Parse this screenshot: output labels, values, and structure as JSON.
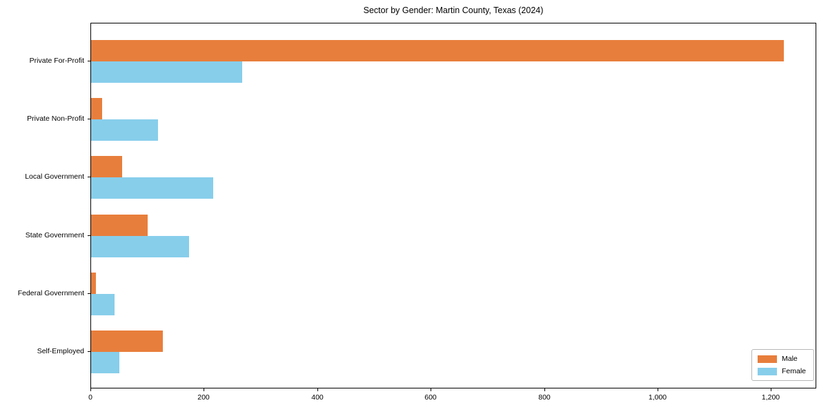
{
  "chart_data": {
    "type": "bar",
    "orientation": "horizontal",
    "title": "Sector by Gender: Martin County, Texas (2024)",
    "xlabel": "",
    "ylabel": "",
    "grid": false,
    "categories": [
      "Private For-Profit",
      "Private Non-Profit",
      "Local Government",
      "State Government",
      "Federal Government",
      "Self-Employed"
    ],
    "series": [
      {
        "name": "Male",
        "color": "#E87E3C",
        "values": [
          1221,
          20,
          55,
          100,
          9,
          126
        ]
      },
      {
        "name": "Female",
        "color": "#87CEEB",
        "values": [
          267,
          118,
          215,
          173,
          41,
          50
        ]
      }
    ],
    "xlim": [
      0,
      1280
    ],
    "xticks": [
      0,
      200,
      400,
      600,
      800,
      1000,
      1200
    ],
    "xtick_labels": [
      "0",
      "200",
      "400",
      "600",
      "800",
      "1,000",
      "1,200"
    ],
    "legend": {
      "position": "lower right",
      "entries": [
        "Male",
        "Female"
      ]
    }
  }
}
